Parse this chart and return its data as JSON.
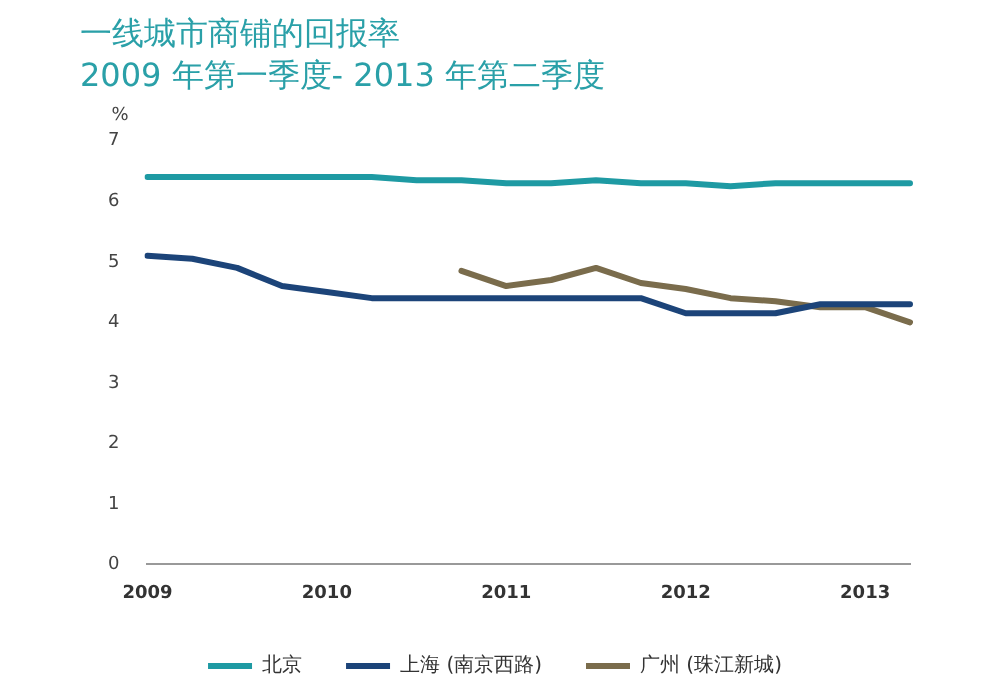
{
  "chart_data": {
    "type": "line",
    "title": "一线城市商铺的回报率",
    "subtitle": "2009 年第一季度- 2013 年第二季度",
    "ylabel": "%",
    "categories": [
      "2009",
      null,
      null,
      null,
      "2010",
      null,
      null,
      null,
      "2011",
      null,
      null,
      null,
      "2012",
      null,
      null,
      null,
      "2013",
      null
    ],
    "series": [
      {
        "name": "北京",
        "color": "#1e9aa3",
        "values": [
          6.4,
          6.4,
          6.4,
          6.4,
          6.4,
          6.4,
          6.35,
          6.35,
          6.3,
          6.3,
          6.35,
          6.3,
          6.3,
          6.25,
          6.3,
          6.3,
          6.3,
          6.3
        ]
      },
      {
        "name": "上海 (南京西路)",
        "color": "#1c4479",
        "values": [
          5.1,
          5.05,
          4.9,
          4.6,
          4.5,
          4.4,
          4.4,
          4.4,
          4.4,
          4.4,
          4.4,
          4.4,
          4.15,
          4.15,
          4.15,
          4.3,
          4.3,
          4.3
        ]
      },
      {
        "name": "广州 (珠江新城)",
        "color": "#7a6c4c",
        "values": [
          null,
          null,
          null,
          null,
          null,
          null,
          null,
          4.85,
          4.6,
          4.7,
          4.9,
          4.65,
          4.55,
          4.4,
          4.35,
          4.25,
          4.25,
          4.0
        ]
      }
    ],
    "ylim": [
      0,
      7
    ],
    "yticks": [
      0,
      1,
      2,
      3,
      4,
      5,
      6,
      7
    ],
    "grid": false,
    "legend": "bottom",
    "marker": "none",
    "line_style": "solid"
  }
}
